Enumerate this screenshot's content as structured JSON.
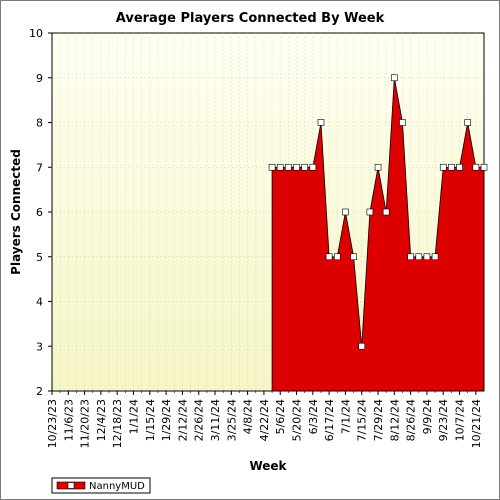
{
  "chart_data": {
    "type": "area",
    "title": "Average Players Connected By Week",
    "xlabel": "Week",
    "ylabel": "Players Connected",
    "ylim": [
      2,
      10
    ],
    "yticks": [
      2,
      3,
      4,
      5,
      6,
      7,
      8,
      9,
      10
    ],
    "x_tick_labels": [
      "10/23/23",
      "11/6/23",
      "11/20/23",
      "12/4/23",
      "12/18/23",
      "1/1/24",
      "1/15/24",
      "1/29/24",
      "2/12/24",
      "2/26/24",
      "3/11/24",
      "3/25/24",
      "4/8/24",
      "4/22/24",
      "5/6/24",
      "5/20/24",
      "6/3/24",
      "6/17/24",
      "7/1/24",
      "7/15/24",
      "7/29/24",
      "8/12/24",
      "8/26/24",
      "9/9/24",
      "9/23/24",
      "10/7/24",
      "10/21/24"
    ],
    "x_first": "10/23/23",
    "x_last": "10/28/24",
    "grid": true,
    "legend_position": "bottom-left",
    "colors": {
      "fill": "#dd0000",
      "plot_bg_top": "#fffff0",
      "plot_bg_bottom": "#f6f6c8",
      "marker_fill": "#ffffff"
    },
    "series": [
      {
        "name": "NannyMUD",
        "points": [
          {
            "x": "4/29/24",
            "y": 7
          },
          {
            "x": "5/6/24",
            "y": 7
          },
          {
            "x": "5/13/24",
            "y": 7
          },
          {
            "x": "5/20/24",
            "y": 7
          },
          {
            "x": "5/27/24",
            "y": 7
          },
          {
            "x": "6/3/24",
            "y": 7
          },
          {
            "x": "6/10/24",
            "y": 8
          },
          {
            "x": "6/17/24",
            "y": 5
          },
          {
            "x": "6/24/24",
            "y": 5
          },
          {
            "x": "7/1/24",
            "y": 6
          },
          {
            "x": "7/8/24",
            "y": 5
          },
          {
            "x": "7/15/24",
            "y": 3
          },
          {
            "x": "7/22/24",
            "y": 6
          },
          {
            "x": "7/29/24",
            "y": 7
          },
          {
            "x": "8/5/24",
            "y": 6
          },
          {
            "x": "8/12/24",
            "y": 9
          },
          {
            "x": "8/19/24",
            "y": 8
          },
          {
            "x": "8/26/24",
            "y": 5
          },
          {
            "x": "9/2/24",
            "y": 5
          },
          {
            "x": "9/9/24",
            "y": 5
          },
          {
            "x": "9/16/24",
            "y": 5
          },
          {
            "x": "9/23/24",
            "y": 7
          },
          {
            "x": "9/30/24",
            "y": 7
          },
          {
            "x": "10/7/24",
            "y": 7
          },
          {
            "x": "10/14/24",
            "y": 8
          },
          {
            "x": "10/21/24",
            "y": 7
          }
        ]
      }
    ]
  }
}
